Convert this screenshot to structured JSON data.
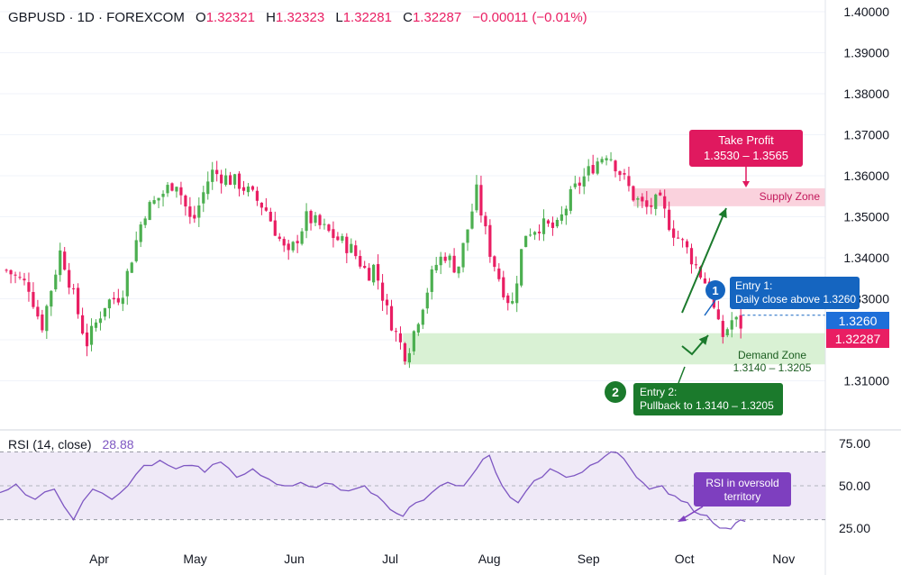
{
  "header": {
    "symbol": "GBPUSD · 1D · FOREXCOM",
    "open_label": "O",
    "open": "1.32321",
    "high_label": "H",
    "high": "1.32323",
    "low_label": "L",
    "low": "1.32281",
    "close_label": "C",
    "close": "1.32287",
    "change": "−0.00011 (−0.01%)"
  },
  "rsi_header": {
    "label": "RSI (14, close)",
    "value": "28.88"
  },
  "price_labels": {
    "entry_level": "1.3260",
    "last_price": "1.32287"
  },
  "annotations": {
    "take_profit_title": "Take Profit",
    "take_profit_range": "1.3530 – 1.3565",
    "supply_zone": "Supply Zone",
    "demand_zone": "Demand Zone",
    "demand_range": "1.3140 – 1.3205",
    "entry1_number": "1",
    "entry1_title": "Entry 1:",
    "entry1_desc": "Daily close above 1.3260",
    "entry2_number": "2",
    "entry2_title": "Entry 2:",
    "entry2_desc": "Pullback to 1.3140 – 1.3205",
    "rsi_note_line1": "RSI in oversold",
    "rsi_note_line2": "territory"
  },
  "colors": {
    "up": "#4caf50",
    "down": "#e91e63",
    "rsi": "#7e57c2",
    "supply": "#f9cdd9",
    "demand": "#d7f0d2",
    "entry1": "#1565c0",
    "entry2": "#1b7a2c",
    "take_profit": "#e0195f",
    "text": "#131722"
  },
  "chart_data": [
    {
      "type": "candlestick",
      "title": "GBPUSD · 1D · FOREXCOM",
      "x_ticks": [
        "Apr",
        "May",
        "Jun",
        "Jul",
        "Aug",
        "Sep",
        "Oct",
        "Nov"
      ],
      "y_ticks": [
        "1.31000",
        "1.32000",
        "1.33000",
        "1.34000",
        "1.35000",
        "1.36000",
        "1.37000",
        "1.38000",
        "1.39000",
        "1.40000"
      ],
      "ylim": [
        1.3066,
        1.4015
      ],
      "zones": {
        "supply": [
          1.353,
          1.3565
        ],
        "demand": [
          1.314,
          1.3205
        ],
        "entry_level": 1.326
      },
      "last_price": 1.32287,
      "trend_waypoints": [
        {
          "date": "2025-03-03",
          "price": 1.337
        },
        {
          "date": "2025-03-10",
          "price": 1.333
        },
        {
          "date": "2025-03-14",
          "price": 1.323
        },
        {
          "date": "2025-03-20",
          "price": 1.342
        },
        {
          "date": "2025-03-28",
          "price": 1.319
        },
        {
          "date": "2025-04-03",
          "price": 1.329
        },
        {
          "date": "2025-04-08",
          "price": 1.331
        },
        {
          "date": "2025-04-15",
          "price": 1.351
        },
        {
          "date": "2025-04-25",
          "price": 1.359
        },
        {
          "date": "2025-04-30",
          "price": 1.348
        },
        {
          "date": "2025-05-06",
          "price": 1.361
        },
        {
          "date": "2025-05-15",
          "price": 1.358
        },
        {
          "date": "2025-05-23",
          "price": 1.352
        },
        {
          "date": "2025-05-30",
          "price": 1.34
        },
        {
          "date": "2025-06-05",
          "price": 1.35
        },
        {
          "date": "2025-06-12",
          "price": 1.346
        },
        {
          "date": "2025-06-19",
          "price": 1.342
        },
        {
          "date": "2025-06-24",
          "price": 1.336
        },
        {
          "date": "2025-06-26",
          "price": 1.338
        },
        {
          "date": "2025-06-30",
          "price": 1.327
        },
        {
          "date": "2025-07-03",
          "price": 1.321
        },
        {
          "date": "2025-07-06",
          "price": 1.316
        },
        {
          "date": "2025-07-10",
          "price": 1.326
        },
        {
          "date": "2025-07-15",
          "price": 1.338
        },
        {
          "date": "2025-07-18",
          "price": 1.341
        },
        {
          "date": "2025-07-22",
          "price": 1.337
        },
        {
          "date": "2025-07-28",
          "price": 1.356
        },
        {
          "date": "2025-08-01",
          "price": 1.342
        },
        {
          "date": "2025-08-05",
          "price": 1.333
        },
        {
          "date": "2025-08-08",
          "price": 1.328
        },
        {
          "date": "2025-08-12",
          "price": 1.346
        },
        {
          "date": "2025-08-17",
          "price": 1.348
        },
        {
          "date": "2025-08-22",
          "price": 1.347
        },
        {
          "date": "2025-08-27",
          "price": 1.356
        },
        {
          "date": "2025-09-03",
          "price": 1.363
        },
        {
          "date": "2025-09-07",
          "price": 1.366
        },
        {
          "date": "2025-09-10",
          "price": 1.362
        },
        {
          "date": "2025-09-15",
          "price": 1.355
        },
        {
          "date": "2025-09-19",
          "price": 1.352
        },
        {
          "date": "2025-09-23",
          "price": 1.354
        },
        {
          "date": "2025-09-27",
          "price": 1.347
        },
        {
          "date": "2025-10-01",
          "price": 1.343
        },
        {
          "date": "2025-10-06",
          "price": 1.336
        },
        {
          "date": "2025-10-09",
          "price": 1.332
        },
        {
          "date": "2025-10-11",
          "price": 1.324
        },
        {
          "date": "2025-10-13",
          "price": 1.321
        },
        {
          "date": "2025-10-16",
          "price": 1.325
        },
        {
          "date": "2025-10-20",
          "price": 1.3229
        }
      ]
    },
    {
      "type": "line",
      "title": "RSI (14, close)",
      "y_ticks": [
        "25.00",
        "50.00",
        "75.00"
      ],
      "ylim": [
        20,
        80
      ],
      "band": [
        30,
        70
      ],
      "last_value": 28.88,
      "x": [
        "2025-03-01",
        "2025-03-06",
        "2025-03-12",
        "2025-03-18",
        "2025-03-24",
        "2025-03-30",
        "2025-04-05",
        "2025-04-10",
        "2025-04-15",
        "2025-04-20",
        "2025-04-25",
        "2025-04-30",
        "2025-05-04",
        "2025-05-09",
        "2025-05-14",
        "2025-05-19",
        "2025-05-24",
        "2025-05-29",
        "2025-06-03",
        "2025-06-08",
        "2025-06-13",
        "2025-06-18",
        "2025-06-23",
        "2025-06-27",
        "2025-07-01",
        "2025-07-05",
        "2025-07-09",
        "2025-07-14",
        "2025-07-19",
        "2025-07-24",
        "2025-07-28",
        "2025-08-01",
        "2025-08-05",
        "2025-08-10",
        "2025-08-15",
        "2025-08-20",
        "2025-08-25",
        "2025-08-30",
        "2025-09-04",
        "2025-09-08",
        "2025-09-12",
        "2025-09-16",
        "2025-09-20",
        "2025-09-24",
        "2025-09-28",
        "2025-10-02",
        "2025-10-06",
        "2025-10-10",
        "2025-10-14",
        "2025-10-17",
        "2025-10-20"
      ],
      "values": [
        46,
        51,
        42,
        48,
        30,
        48,
        42,
        50,
        62,
        65,
        60,
        62,
        58,
        64,
        55,
        60,
        54,
        50,
        52,
        49,
        51,
        47,
        50,
        44,
        36,
        32,
        40,
        46,
        52,
        50,
        60,
        68,
        50,
        40,
        53,
        60,
        55,
        58,
        64,
        70,
        66,
        55,
        48,
        50,
        44,
        40,
        33,
        28,
        25,
        28,
        29
      ]
    }
  ]
}
